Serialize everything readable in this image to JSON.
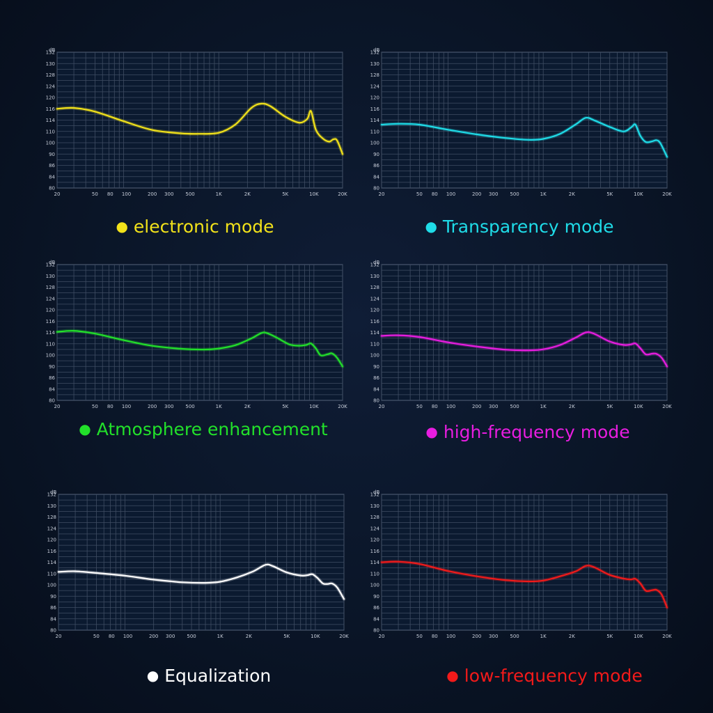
{
  "axis": {
    "y_unit": "dB",
    "y_ticks": [
      "132",
      "130",
      "128",
      "124",
      "120",
      "116",
      "114",
      "110",
      "100",
      "90",
      "86",
      "84",
      "80"
    ],
    "x_ticks": [
      {
        "label": "20",
        "f": 20
      },
      {
        "label": "50",
        "f": 50
      },
      {
        "label": "80",
        "f": 80
      },
      {
        "label": "100",
        "f": 100
      },
      {
        "label": "200",
        "f": 200
      },
      {
        "label": "300",
        "f": 300
      },
      {
        "label": "500",
        "f": 500
      },
      {
        "label": "1K",
        "f": 1000
      },
      {
        "label": "2K",
        "f": 2000
      },
      {
        "label": "5K",
        "f": 5000
      },
      {
        "label": "10K",
        "f": 10000
      },
      {
        "label": "20K",
        "f": 20000
      }
    ]
  },
  "chart_data": [
    {
      "type": "line",
      "title": "electronic mode",
      "color": "#f2e21a",
      "xscale": "log",
      "xlim": [
        20,
        20000
      ],
      "grid": true,
      "series": [
        {
          "name": "electronic mode",
          "points": [
            [
              20,
              116
            ],
            [
              30,
              116.3
            ],
            [
              50,
              115.5
            ],
            [
              100,
              113.6
            ],
            [
              200,
              110.5
            ],
            [
              400,
              108.3
            ],
            [
              600,
              107.9
            ],
            [
              1000,
              108.8
            ],
            [
              1500,
              112.5
            ],
            [
              2200,
              116.3
            ],
            [
              2800,
              117.8
            ],
            [
              3500,
              116.9
            ],
            [
              5000,
              114.6
            ],
            [
              7000,
              113.1
            ],
            [
              8500,
              114.2
            ],
            [
              9300,
              115.6
            ],
            [
              10500,
              110.5
            ],
            [
              12500,
              103.5
            ],
            [
              14500,
              101
            ],
            [
              16000,
              103
            ],
            [
              17500,
              102
            ],
            [
              20000,
              90
            ]
          ]
        }
      ]
    },
    {
      "type": "line",
      "title": "Transparency mode",
      "color": "#1fdce8",
      "xscale": "log",
      "xlim": [
        20,
        20000
      ],
      "grid": true,
      "series": [
        {
          "name": "Transparency mode",
          "points": [
            [
              20,
              112.4
            ],
            [
              30,
              112.7
            ],
            [
              50,
              112.4
            ],
            [
              100,
              110.6
            ],
            [
              200,
              107.4
            ],
            [
              400,
              104.2
            ],
            [
              700,
              102.6
            ],
            [
              1000,
              103.4
            ],
            [
              1500,
              107.8
            ],
            [
              2200,
              112.5
            ],
            [
              2800,
              114.4
            ],
            [
              3500,
              113.8
            ],
            [
              5000,
              111.6
            ],
            [
              7000,
              110
            ],
            [
              8500,
              111.6
            ],
            [
              9300,
              112.4
            ],
            [
              10500,
              106
            ],
            [
              12000,
              100.6
            ],
            [
              14000,
              101.3
            ],
            [
              15500,
              102.2
            ],
            [
              17000,
              99.6
            ],
            [
              20000,
              89
            ]
          ]
        }
      ]
    },
    {
      "type": "line",
      "title": "Atmosphere enhancement",
      "color": "#22e02a",
      "xscale": "log",
      "xlim": [
        20,
        20000
      ],
      "grid": true,
      "series": [
        {
          "name": "Atmosphere enhancement",
          "points": [
            [
              20,
              114.1
            ],
            [
              30,
              114.3
            ],
            [
              50,
              113.6
            ],
            [
              100,
              111.3
            ],
            [
              200,
              108.2
            ],
            [
              400,
              105.6
            ],
            [
              700,
              104.9
            ],
            [
              1000,
              105.8
            ],
            [
              1500,
              108.8
            ],
            [
              2200,
              111.9
            ],
            [
              2800,
              113.8
            ],
            [
              3200,
              113.8
            ],
            [
              4000,
              112.3
            ],
            [
              5500,
              109.5
            ],
            [
              7000,
              108.3
            ],
            [
              8300,
              109
            ],
            [
              9300,
              110.1
            ],
            [
              10500,
              105.8
            ],
            [
              11800,
              99.8
            ],
            [
              14000,
              100.8
            ],
            [
              15500,
              101.5
            ],
            [
              17500,
              97.6
            ],
            [
              20000,
              90
            ]
          ]
        }
      ]
    },
    {
      "type": "line",
      "title": "high-frequency mode",
      "color": "#e81de0",
      "xscale": "log",
      "xlim": [
        20,
        20000
      ],
      "grid": true,
      "series": [
        {
          "name": "high-frequency mode",
          "points": [
            [
              20,
              112.8
            ],
            [
              30,
              113
            ],
            [
              50,
              112.4
            ],
            [
              100,
              110.5
            ],
            [
              200,
              107.6
            ],
            [
              400,
              104.8
            ],
            [
              700,
              104.2
            ],
            [
              1000,
              105.1
            ],
            [
              1500,
              108.9
            ],
            [
              2200,
              112.2
            ],
            [
              2800,
              114
            ],
            [
              3400,
              113.6
            ],
            [
              5000,
              110.8
            ],
            [
              7000,
              109
            ],
            [
              8300,
              109.4
            ],
            [
              9300,
              110.1
            ],
            [
              10500,
              106
            ],
            [
              12000,
              100.6
            ],
            [
              14000,
              101.3
            ],
            [
              15500,
              101.1
            ],
            [
              17500,
              97.8
            ],
            [
              20000,
              90
            ]
          ]
        }
      ]
    },
    {
      "type": "line",
      "title": "Equalization",
      "color": "#ffffff",
      "xscale": "log",
      "xlim": [
        20,
        20000
      ],
      "grid": true,
      "series": [
        {
          "name": "Equalization",
          "points": [
            [
              20,
              110.6
            ],
            [
              30,
              110.8
            ],
            [
              50,
              110.2
            ],
            [
              100,
              108.1
            ],
            [
              200,
              104.7
            ],
            [
              400,
              102.3
            ],
            [
              700,
              101.8
            ],
            [
              1000,
              102.8
            ],
            [
              1500,
              106.6
            ],
            [
              2200,
              110.7
            ],
            [
              3000,
              113.1
            ],
            [
              3600,
              112.6
            ],
            [
              5000,
              110.4
            ],
            [
              7000,
              108.3
            ],
            [
              8300,
              108.6
            ],
            [
              9300,
              109.4
            ],
            [
              10500,
              106.2
            ],
            [
              12000,
              101.3
            ],
            [
              13500,
              100.8
            ],
            [
              15000,
              101.2
            ],
            [
              17000,
              97.6
            ],
            [
              20000,
              89
            ]
          ]
        }
      ]
    },
    {
      "type": "line",
      "title": "low-frequency mode",
      "color": "#f21a1a",
      "xscale": "log",
      "xlim": [
        20,
        20000
      ],
      "grid": true,
      "series": [
        {
          "name": "low-frequency mode",
          "points": [
            [
              20,
              114
            ],
            [
              30,
              114.1
            ],
            [
              50,
              113.4
            ],
            [
              100,
              110.9
            ],
            [
              200,
              107.6
            ],
            [
              400,
              104.2
            ],
            [
              700,
              103.1
            ],
            [
              1000,
              103.8
            ],
            [
              1500,
              107.6
            ],
            [
              2200,
              110.8
            ],
            [
              2800,
              112.7
            ],
            [
              3400,
              112.3
            ],
            [
              5000,
              108.8
            ],
            [
              7000,
              105.6
            ],
            [
              8300,
              104.8
            ],
            [
              9300,
              105.3
            ],
            [
              10500,
              101.2
            ],
            [
              12000,
              94.8
            ],
            [
              14000,
              95.3
            ],
            [
              15500,
              95.6
            ],
            [
              17500,
              91.6
            ],
            [
              20000,
              86
            ]
          ]
        }
      ]
    }
  ]
}
